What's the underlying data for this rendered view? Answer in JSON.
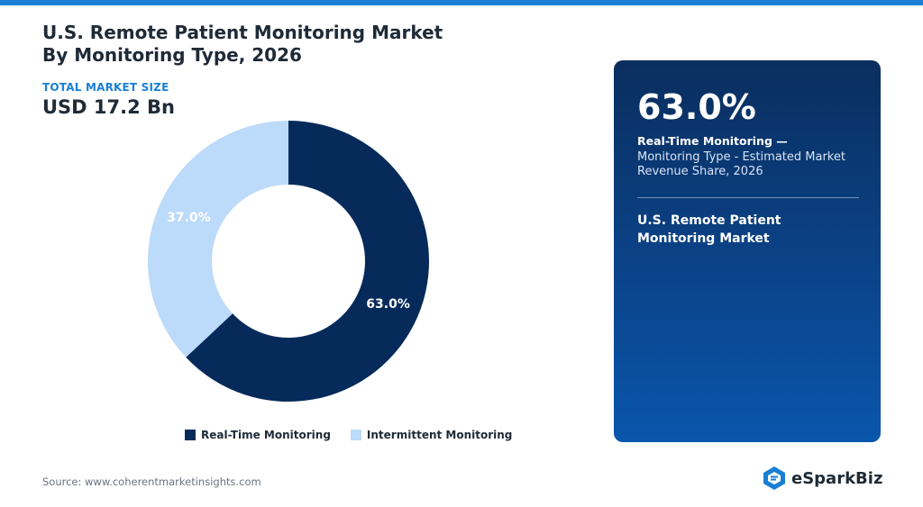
{
  "header": {
    "title_line1": "U.S. Remote Patient Monitoring Market",
    "title_line2": "By Monitoring Type, 2026"
  },
  "market_size": {
    "label": "TOTAL MARKET SIZE",
    "value": "USD 17.2 Bn"
  },
  "chart_data": {
    "type": "pie",
    "style": "donut",
    "categories": [
      "Real-Time Monitoring",
      "Intermittent Monitoring"
    ],
    "values": [
      63.0,
      37.0
    ],
    "labels": [
      "63.0%",
      "37.0%"
    ],
    "colors": [
      "#062a5a",
      "#bcdafa"
    ],
    "legend_placement": "bottom"
  },
  "highlight_panel": {
    "percentage": "63.0%",
    "segment": "Real-Time Monitoring —",
    "description": "Monitoring Type - Estimated Market Revenue Share, 2026",
    "market": "U.S. Remote Patient Monitoring Market"
  },
  "footer": {
    "source": "Source: www.coherentmarketinsights.com",
    "logo_text": "eSparkBiz"
  },
  "colors": {
    "accent": "#1a7fd4",
    "dark_navy": "#062a5a",
    "light_blue": "#bcdafa"
  }
}
